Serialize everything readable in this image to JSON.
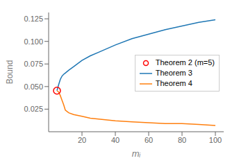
{
  "chart_data": {
    "type": "line",
    "xlabel": "mᵢ",
    "ylabel": "Bound",
    "x": [
      5,
      6,
      7,
      8,
      9,
      10,
      12,
      15,
      20,
      25,
      30,
      40,
      50,
      60,
      70,
      80,
      90,
      100
    ],
    "series": [
      {
        "name": "Theorem 2 (m=5)",
        "type": "scatter",
        "marker": "circle",
        "color": "red",
        "values": [
          0.0455,
          null,
          null,
          null,
          null,
          null,
          null,
          null,
          null,
          null,
          null,
          null,
          null,
          null,
          null,
          null,
          null,
          null
        ]
      },
      {
        "name": "Theorem 3",
        "type": "line",
        "color": "#1f77b4",
        "values": [
          0.0455,
          0.052,
          0.058,
          0.0615,
          0.0635,
          0.065,
          0.068,
          0.072,
          0.079,
          0.084,
          0.088,
          0.096,
          0.103,
          0.108,
          0.113,
          0.117,
          0.121,
          0.124
        ]
      },
      {
        "name": "Theorem 4",
        "type": "line",
        "color": "#ff7f0e",
        "values": [
          0.0455,
          0.044,
          0.04,
          0.035,
          0.03,
          0.024,
          0.021,
          0.019,
          0.017,
          0.015,
          0.014,
          0.012,
          0.011,
          0.01,
          0.009,
          0.009,
          0.008,
          0.007
        ]
      }
    ],
    "xlim": [
      0,
      105
    ],
    "ylim": [
      0,
      0.132
    ],
    "xticks": [
      20,
      40,
      60,
      80,
      100
    ],
    "yticks": [
      0.025,
      {
        "value": 0.05,
        "label": "0.050"
      },
      0.075,
      {
        "value": 0.1,
        "label": "0.100"
      },
      0.125
    ],
    "legend": "right",
    "grid": false
  }
}
